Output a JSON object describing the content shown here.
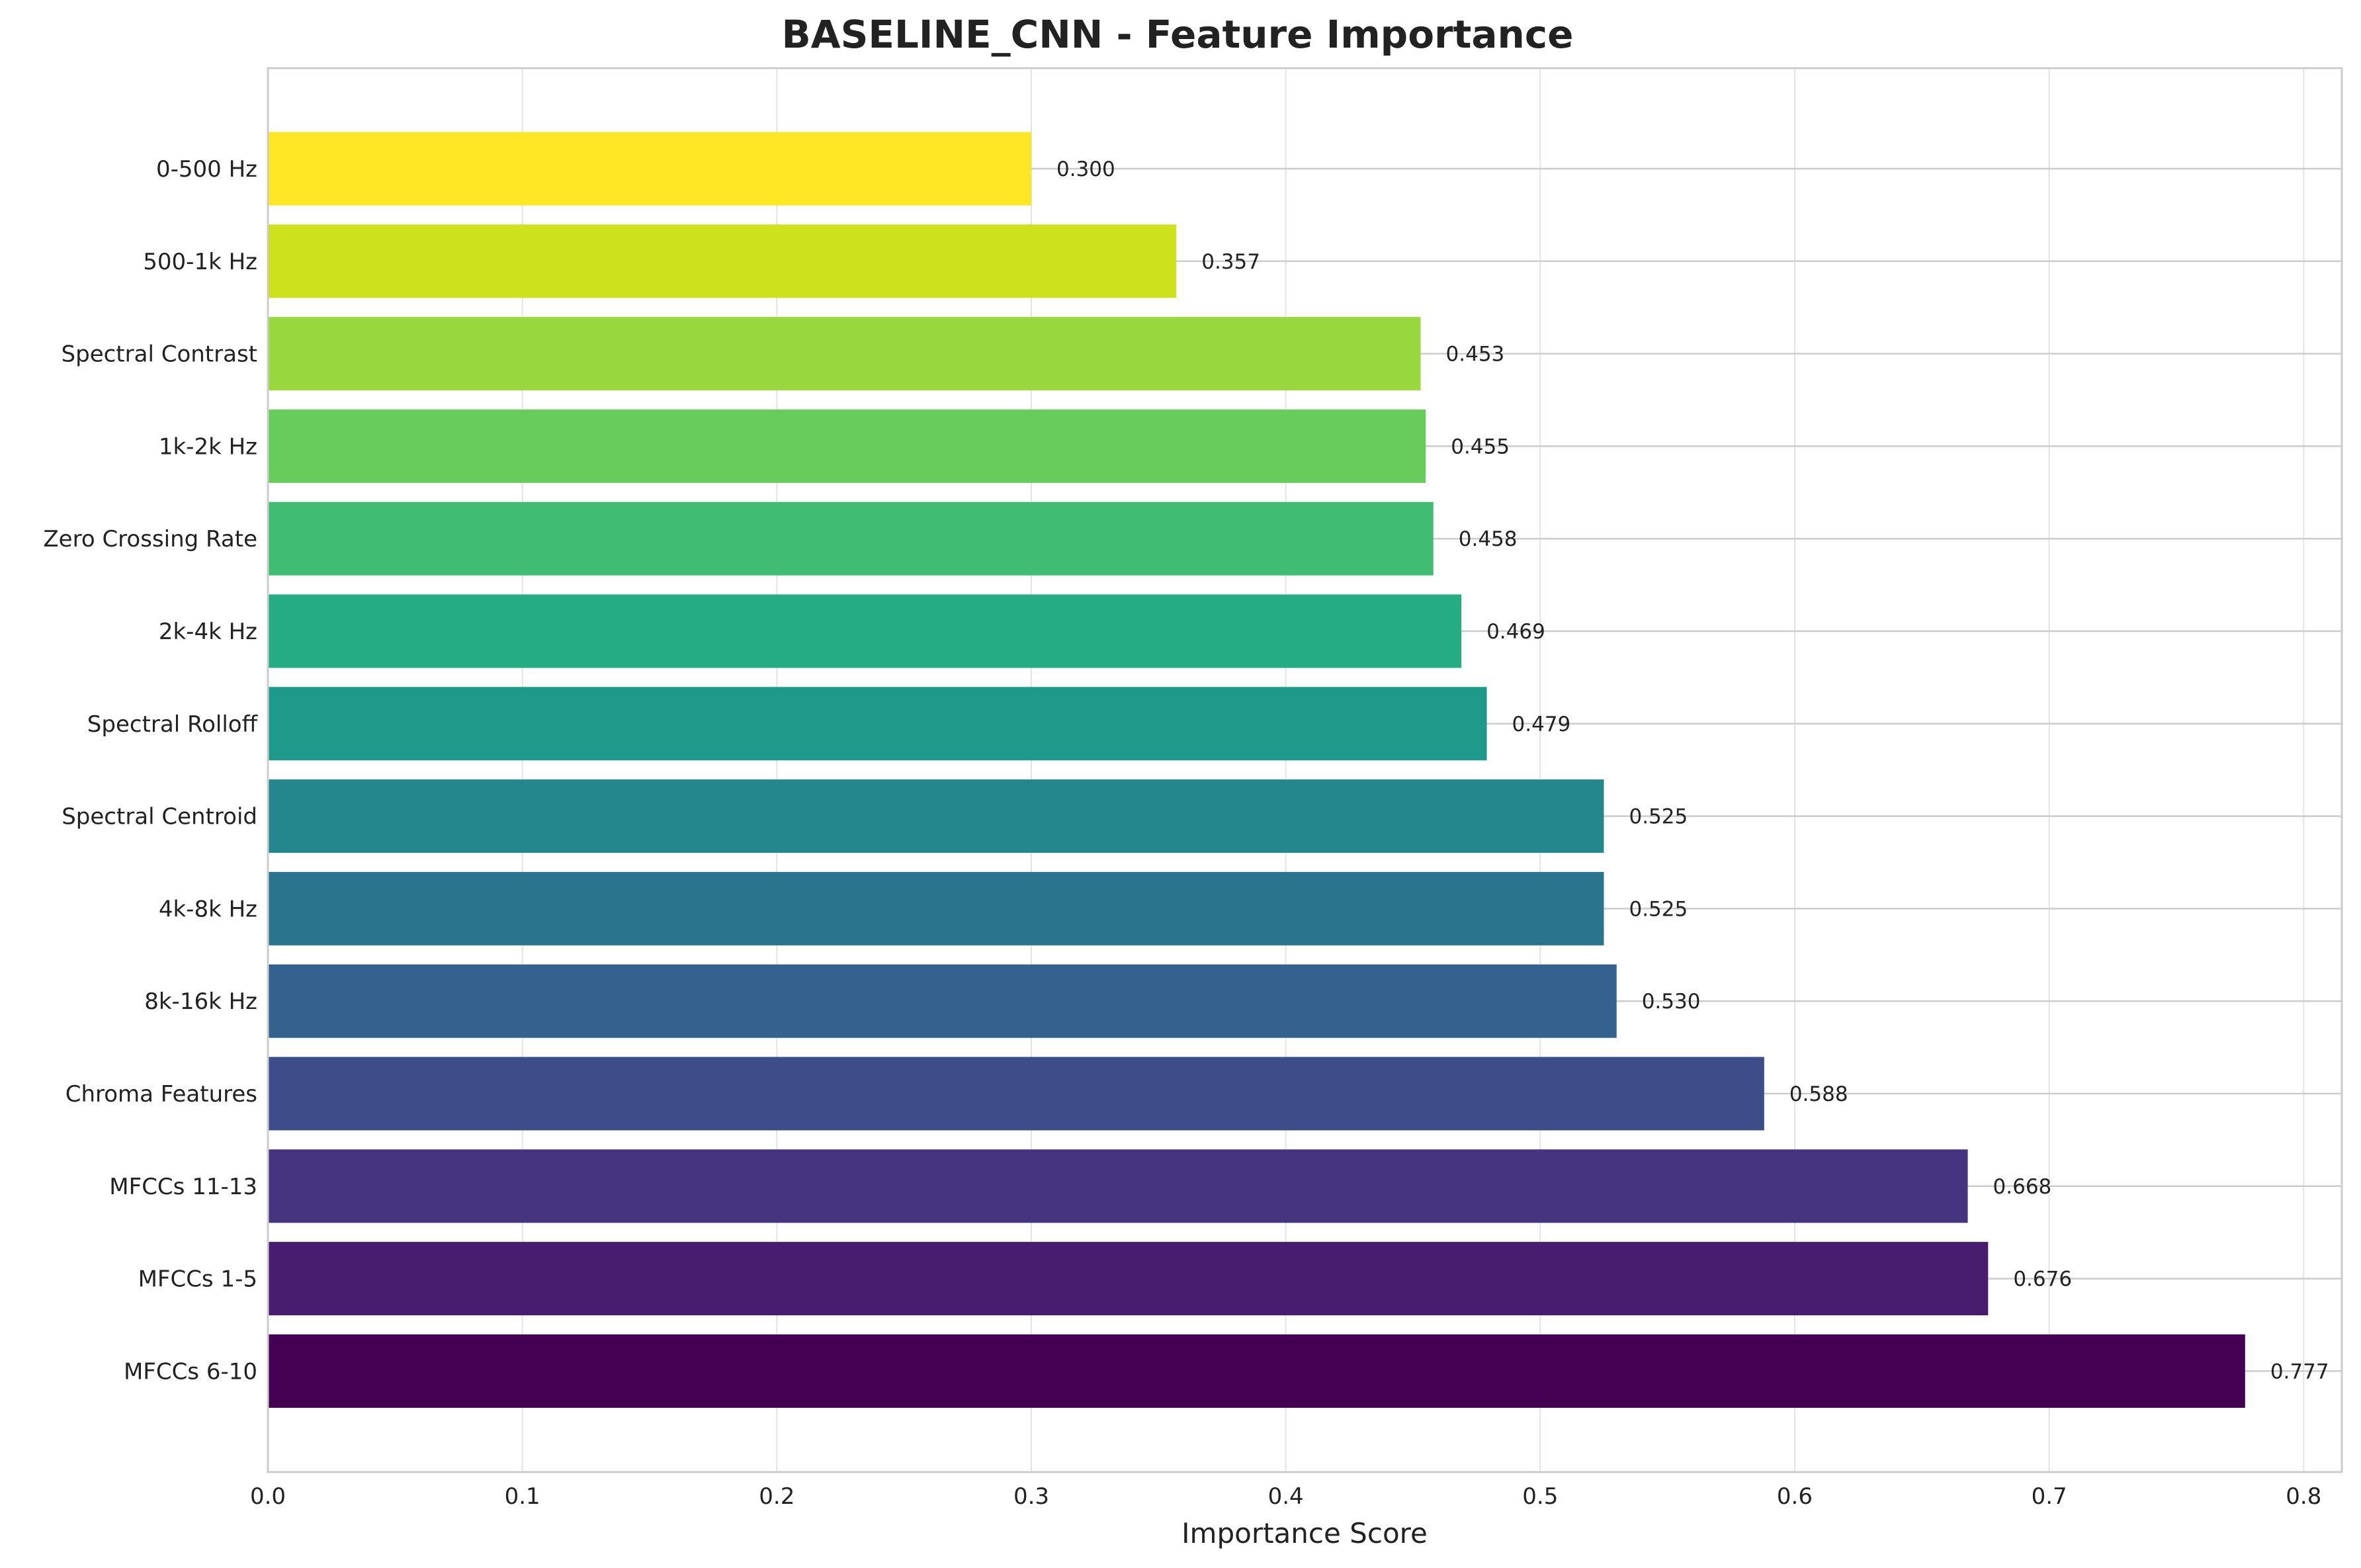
{
  "chart_data": {
    "type": "bar",
    "orientation": "horizontal",
    "title": "BASELINE_CNN - Feature Importance",
    "xlabel": "Importance Score",
    "ylabel": "",
    "xlim": [
      0,
      0.815
    ],
    "xticks": [
      0.0,
      0.1,
      0.2,
      0.3,
      0.4,
      0.5,
      0.6,
      0.7,
      0.8
    ],
    "xtick_labels": [
      "0.0",
      "0.1",
      "0.2",
      "0.3",
      "0.4",
      "0.5",
      "0.6",
      "0.7",
      "0.8"
    ],
    "grid": true,
    "categories": [
      "0-500 Hz",
      "500-1k Hz",
      "Spectral Contrast",
      "1k-2k Hz",
      "Zero Crossing Rate",
      "2k-4k Hz",
      "Spectral Rolloff",
      "Spectral Centroid",
      "4k-8k Hz",
      "8k-16k Hz",
      "Chroma Features",
      "MFCCs 11-13",
      "MFCCs 1-5",
      "MFCCs 6-10"
    ],
    "values": [
      0.3,
      0.357,
      0.453,
      0.455,
      0.458,
      0.469,
      0.479,
      0.525,
      0.525,
      0.53,
      0.588,
      0.668,
      0.676,
      0.777
    ],
    "value_labels": [
      "0.300",
      "0.357",
      "0.453",
      "0.455",
      "0.458",
      "0.469",
      "0.479",
      "0.525",
      "0.525",
      "0.530",
      "0.588",
      "0.668",
      "0.676",
      "0.777"
    ],
    "colors": [
      "#fde725",
      "#cde11d",
      "#98d83e",
      "#67cc5c",
      "#40bd72",
      "#25ac82",
      "#1f998a",
      "#24878e",
      "#2b748e",
      "#34618d",
      "#3d4d8a",
      "#453581",
      "#481c6e",
      "#440154"
    ]
  }
}
